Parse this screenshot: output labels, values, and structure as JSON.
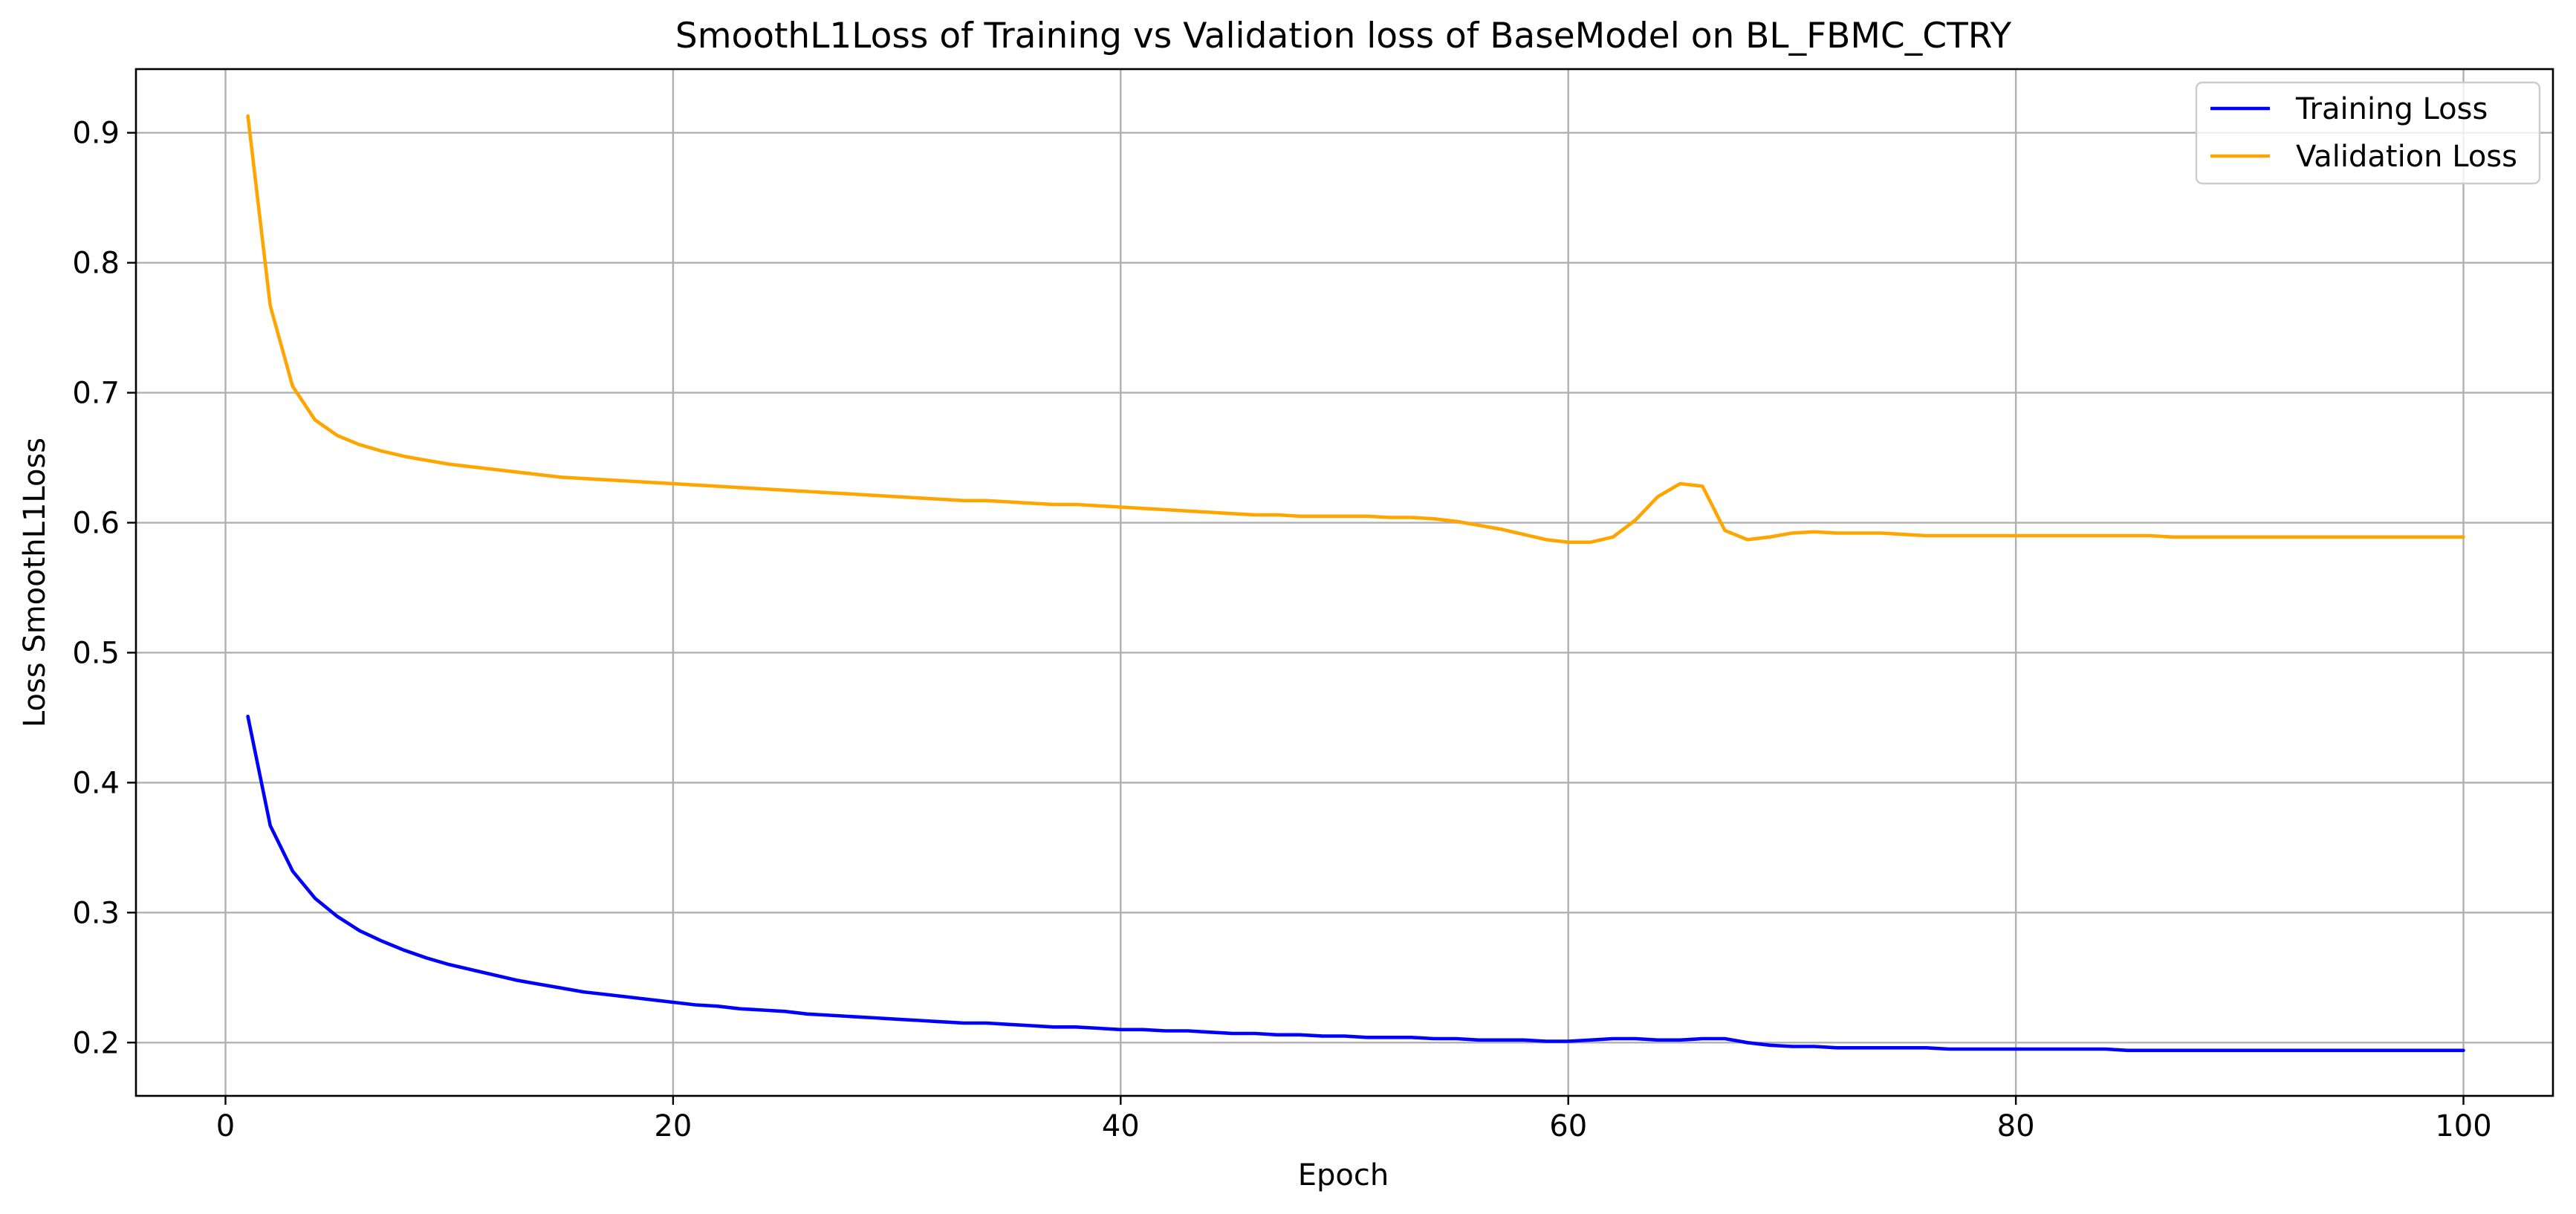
{
  "colors": {
    "training": "#0000ff",
    "validation": "#ffa500",
    "grid": "#b0b0b0",
    "background": "#ffffff"
  },
  "chart_data": {
    "type": "line",
    "title": "SmoothL1Loss of Training vs Validation loss of BaseModel on BL_FBMC_CTRY",
    "xlabel": "Epoch",
    "ylabel": "Loss SmoothL1Loss",
    "xlim": [
      -4,
      104
    ],
    "ylim": [
      0.159,
      0.949
    ],
    "xticks": [
      0,
      20,
      40,
      60,
      80,
      100
    ],
    "yticks": [
      0.2,
      0.3,
      0.4,
      0.5,
      0.6,
      0.7,
      0.8,
      0.9
    ],
    "xtick_labels": [
      "0",
      "20",
      "40",
      "60",
      "80",
      "100"
    ],
    "ytick_labels": [
      "0.2",
      "0.3",
      "0.4",
      "0.5",
      "0.6",
      "0.7",
      "0.8",
      "0.9"
    ],
    "grid": true,
    "legend_position": "top-right",
    "x": [
      1,
      2,
      3,
      4,
      5,
      6,
      7,
      8,
      9,
      10,
      11,
      12,
      13,
      14,
      15,
      16,
      17,
      18,
      19,
      20,
      21,
      22,
      23,
      24,
      25,
      26,
      27,
      28,
      29,
      30,
      31,
      32,
      33,
      34,
      35,
      36,
      37,
      38,
      39,
      40,
      41,
      42,
      43,
      44,
      45,
      46,
      47,
      48,
      49,
      50,
      51,
      52,
      53,
      54,
      55,
      56,
      57,
      58,
      59,
      60,
      61,
      62,
      63,
      64,
      65,
      66,
      67,
      68,
      69,
      70,
      71,
      72,
      73,
      74,
      75,
      76,
      77,
      78,
      79,
      80,
      81,
      82,
      83,
      84,
      85,
      86,
      87,
      88,
      89,
      90,
      91,
      92,
      93,
      94,
      95,
      96,
      97,
      98,
      99,
      100
    ],
    "series": [
      {
        "name": "Training Loss",
        "color": "#0000ff",
        "values": [
          0.451,
          0.367,
          0.332,
          0.311,
          0.297,
          0.286,
          0.278,
          0.271,
          0.265,
          0.26,
          0.256,
          0.252,
          0.248,
          0.245,
          0.242,
          0.239,
          0.237,
          0.235,
          0.233,
          0.231,
          0.229,
          0.228,
          0.226,
          0.225,
          0.224,
          0.222,
          0.221,
          0.22,
          0.219,
          0.218,
          0.217,
          0.216,
          0.215,
          0.215,
          0.214,
          0.213,
          0.212,
          0.212,
          0.211,
          0.21,
          0.21,
          0.209,
          0.209,
          0.208,
          0.207,
          0.207,
          0.206,
          0.206,
          0.205,
          0.205,
          0.204,
          0.204,
          0.204,
          0.203,
          0.203,
          0.202,
          0.202,
          0.202,
          0.201,
          0.201,
          0.202,
          0.203,
          0.203,
          0.202,
          0.202,
          0.203,
          0.203,
          0.2,
          0.198,
          0.197,
          0.197,
          0.196,
          0.196,
          0.196,
          0.196,
          0.196,
          0.195,
          0.195,
          0.195,
          0.195,
          0.195,
          0.195,
          0.195,
          0.195,
          0.194,
          0.194,
          0.194,
          0.194,
          0.194,
          0.194,
          0.194,
          0.194,
          0.194,
          0.194,
          0.194,
          0.194,
          0.194,
          0.194,
          0.194,
          0.194
        ]
      },
      {
        "name": "Validation Loss",
        "color": "#ffa500",
        "values": [
          0.913,
          0.767,
          0.705,
          0.679,
          0.667,
          0.66,
          0.655,
          0.651,
          0.648,
          0.645,
          0.643,
          0.641,
          0.639,
          0.637,
          0.635,
          0.634,
          0.633,
          0.632,
          0.631,
          0.63,
          0.629,
          0.628,
          0.627,
          0.626,
          0.625,
          0.624,
          0.623,
          0.622,
          0.621,
          0.62,
          0.619,
          0.618,
          0.617,
          0.617,
          0.616,
          0.615,
          0.614,
          0.614,
          0.613,
          0.612,
          0.611,
          0.61,
          0.609,
          0.608,
          0.607,
          0.606,
          0.606,
          0.605,
          0.605,
          0.605,
          0.605,
          0.604,
          0.604,
          0.603,
          0.601,
          0.598,
          0.595,
          0.591,
          0.587,
          0.585,
          0.585,
          0.589,
          0.602,
          0.62,
          0.63,
          0.628,
          0.594,
          0.587,
          0.589,
          0.592,
          0.593,
          0.592,
          0.592,
          0.592,
          0.591,
          0.59,
          0.59,
          0.59,
          0.59,
          0.59,
          0.59,
          0.59,
          0.59,
          0.59,
          0.59,
          0.59,
          0.589,
          0.589,
          0.589,
          0.589,
          0.589,
          0.589,
          0.589,
          0.589,
          0.589,
          0.589,
          0.589,
          0.589,
          0.589,
          0.589
        ]
      }
    ]
  }
}
